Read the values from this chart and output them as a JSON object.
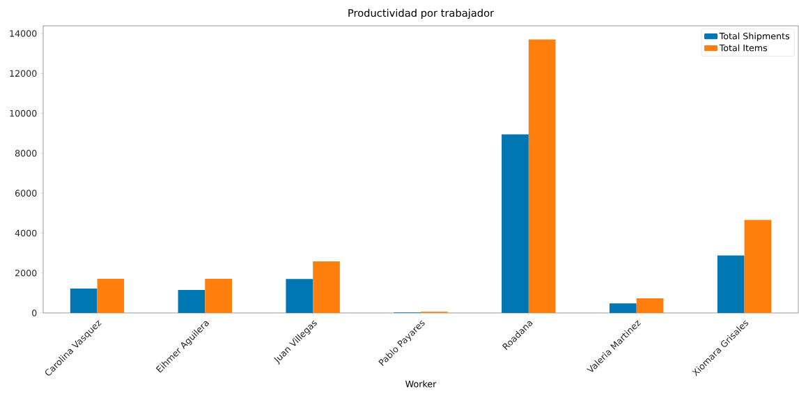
{
  "chart_data": {
    "type": "bar",
    "title": "Productividad por trabajador",
    "xlabel": "Worker",
    "categories": [
      "Carolina Vasquez",
      "Eihmer Aguilera",
      "Juan Villegas",
      "Pablo Payares",
      "Roadana",
      "Valeria Martinez",
      "Xiomara Grisales"
    ],
    "series": [
      {
        "name": "Total Shipments",
        "color": "#0077b2",
        "values": [
          1220,
          1150,
          1700,
          30,
          8950,
          480,
          2880
        ]
      },
      {
        "name": "Total Items",
        "color": "#ff7f0e",
        "values": [
          1710,
          1710,
          2580,
          60,
          13700,
          730,
          4660
        ]
      }
    ],
    "ylim": [
      0,
      14385
    ],
    "yticks": [
      0,
      2000,
      4000,
      6000,
      8000,
      10000,
      12000,
      14000
    ],
    "grid": false,
    "legend": "top right"
  }
}
